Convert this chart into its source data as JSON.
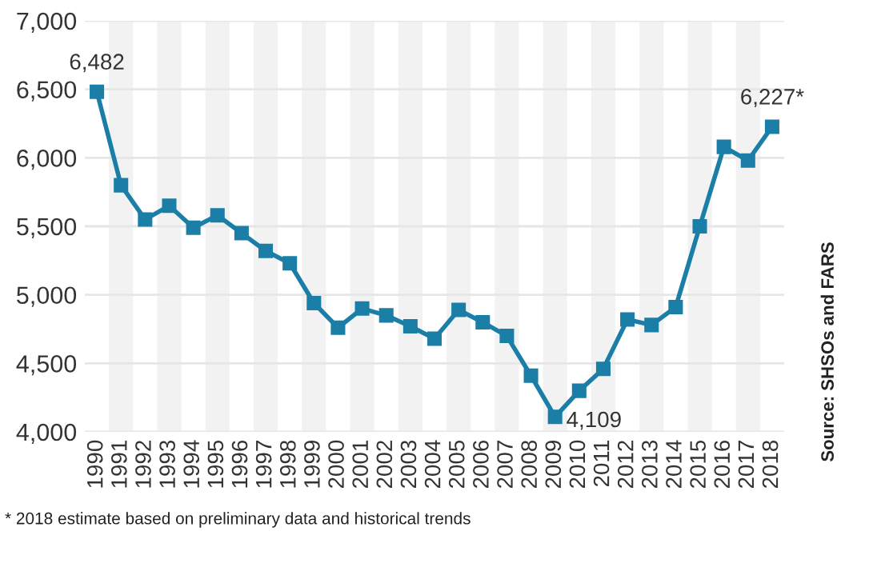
{
  "chart_data": {
    "type": "line",
    "categories": [
      "1990",
      "1991",
      "1992",
      "1993",
      "1994",
      "1995",
      "1996",
      "1997",
      "1998",
      "1999",
      "2000",
      "2001",
      "2002",
      "2003",
      "2004",
      "2005",
      "2006",
      "2007",
      "2008",
      "2009",
      "2010",
      "2011",
      "2012",
      "2013",
      "2014",
      "2015",
      "2016",
      "2017",
      "2018"
    ],
    "series": [
      {
        "color": "#1b7ea6",
        "values": [
          6482,
          5800,
          5550,
          5650,
          5490,
          5580,
          5450,
          5320,
          5230,
          4940,
          4760,
          4900,
          4850,
          4770,
          4680,
          4890,
          4800,
          4700,
          4410,
          4109,
          4300,
          4460,
          4820,
          4780,
          4910,
          5500,
          6080,
          5980,
          6227
        ],
        "value_labels": [
          "6,482",
          null,
          null,
          null,
          null,
          null,
          null,
          null,
          null,
          null,
          null,
          null,
          null,
          null,
          null,
          null,
          null,
          null,
          null,
          "4,109",
          null,
          null,
          null,
          null,
          null,
          null,
          null,
          null,
          "6,227*"
        ]
      }
    ],
    "ylim": [
      4000,
      7000
    ],
    "yticks": [
      {
        "value": 4000,
        "label": "4,000"
      },
      {
        "value": 4500,
        "label": "4,500"
      },
      {
        "value": 5000,
        "label": "5,000"
      },
      {
        "value": 5500,
        "label": "5,500"
      },
      {
        "value": 6000,
        "label": "6,000"
      },
      {
        "value": 6500,
        "label": "6,500"
      },
      {
        "value": 7000,
        "label": "7,000"
      }
    ],
    "grid": "y",
    "marker": "square",
    "line_style": "solid",
    "bands": [
      {
        "axis": "x",
        "from": "1991",
        "to": "1991",
        "color": "#f2f2f2"
      },
      {
        "axis": "x",
        "from": "1993",
        "to": "1993",
        "color": "#f2f2f2"
      },
      {
        "axis": "x",
        "from": "1995",
        "to": "1995",
        "color": "#f2f2f2"
      },
      {
        "axis": "x",
        "from": "1997",
        "to": "1997",
        "color": "#f2f2f2"
      },
      {
        "axis": "x",
        "from": "1999",
        "to": "1999",
        "color": "#f2f2f2"
      },
      {
        "axis": "x",
        "from": "2001",
        "to": "2001",
        "color": "#f2f2f2"
      },
      {
        "axis": "x",
        "from": "2003",
        "to": "2003",
        "color": "#f2f2f2"
      },
      {
        "axis": "x",
        "from": "2005",
        "to": "2005",
        "color": "#f2f2f2"
      },
      {
        "axis": "x",
        "from": "2007",
        "to": "2007",
        "color": "#f2f2f2"
      },
      {
        "axis": "x",
        "from": "2009",
        "to": "2009",
        "color": "#f2f2f2"
      },
      {
        "axis": "x",
        "from": "2011",
        "to": "2011",
        "color": "#f2f2f2"
      },
      {
        "axis": "x",
        "from": "2013",
        "to": "2013",
        "color": "#f2f2f2"
      },
      {
        "axis": "x",
        "from": "2015",
        "to": "2015",
        "color": "#f2f2f2"
      },
      {
        "axis": "x",
        "from": "2017",
        "to": "2017",
        "color": "#f2f2f2"
      }
    ],
    "annotations": [
      "Source: SHSOs and FARS",
      "* 2018 estimate based on preliminary data and historical trends"
    ]
  }
}
